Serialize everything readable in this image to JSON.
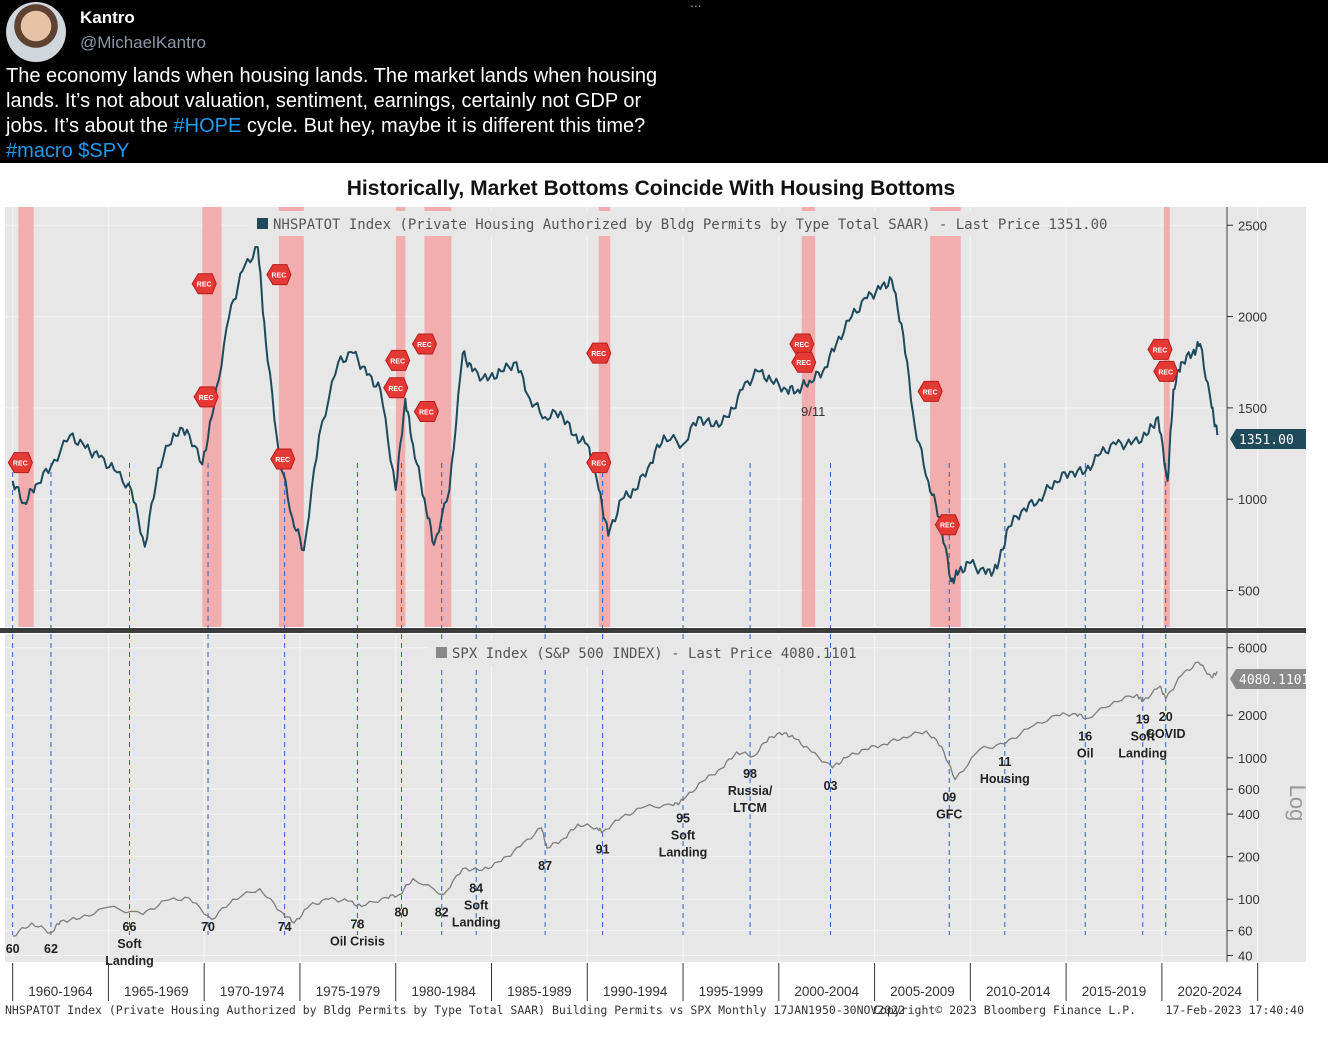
{
  "tweet": {
    "author_name": "Kantro",
    "author_handle": "@MichaelKantro",
    "more": "...",
    "line1": "The economy lands when housing lands. The market lands when housing",
    "line2": "lands. It’s not about valuation, sentiment, earnings, certainly not GDP or",
    "line3_a": "jobs. It’s about the ",
    "hashtag_hope": "#HOPE",
    "line3_b": " cycle. But hey, maybe it is different this time?",
    "hashtag_macro": "#macro",
    "cashtag_spy": "$SPY"
  },
  "chart_data": {
    "type": "line",
    "title": "Historically, Market Bottoms Coincide With Housing Bottoms",
    "colors": {
      "permits": "#1e4a5c",
      "spx": "#7d7d7d",
      "recession": "#f3a3a3",
      "rec_marker": "#e53935",
      "plot_bg": "#e7e7e7",
      "guide": "#2a63c9"
    },
    "permits_legend": "NHSPATOT Index (Private Housing Authorized by Bldg Permits by Type Total SAAR) - Last Price 1351.00",
    "permits_last_label": "1351.00",
    "permits_yticks": [
      "2500",
      "2000",
      "1500",
      "1000",
      "500"
    ],
    "permits_yticks_values": [
      2500,
      2000,
      1500,
      1000,
      500
    ],
    "spx_legend": "SPX Index (S&P 500 INDEX) - Last Price 4080.1101",
    "spx_last_label": "4080.1101",
    "spx_yticks": [
      "6000",
      "2000",
      "1000",
      "600",
      "400",
      "200",
      "100",
      "60",
      "40"
    ],
    "spx_yticks_values": [
      6000,
      2000,
      1000,
      600,
      400,
      200,
      100,
      60,
      40
    ],
    "spx_scale": "log",
    "spx_scale_label": "Log",
    "x_period_labels": [
      "1960-1964",
      "1965-1969",
      "1970-1974",
      "1975-1979",
      "1980-1984",
      "1985-1989",
      "1990-1994",
      "1995-1999",
      "2000-2004",
      "2005-2009",
      "2010-2014",
      "2015-2019",
      "2020-2024"
    ],
    "recessions": [
      [
        1960.3,
        1961.1
      ],
      [
        1969.9,
        1970.9
      ],
      [
        1973.9,
        1975.2
      ],
      [
        1980.0,
        1980.5
      ],
      [
        1981.5,
        1982.9
      ],
      [
        1990.6,
        1991.2
      ],
      [
        2001.2,
        2001.9
      ],
      [
        2007.9,
        2009.5
      ],
      [
        2020.1,
        2020.3
      ]
    ],
    "rec_marker_text": "REC",
    "rec_markers": [
      [
        1960.4,
        1200
      ],
      [
        1970.0,
        2180
      ],
      [
        1970.1,
        1560
      ],
      [
        1973.9,
        2230
      ],
      [
        1974.1,
        1220
      ],
      [
        1980.0,
        1610
      ],
      [
        1980.1,
        1760
      ],
      [
        1981.5,
        1850
      ],
      [
        1981.6,
        1480
      ],
      [
        1990.6,
        1200
      ],
      [
        1990.6,
        1800
      ],
      [
        2001.2,
        1850
      ],
      [
        2001.3,
        1750
      ],
      [
        2007.9,
        1590
      ],
      [
        2008.8,
        860
      ],
      [
        2019.9,
        1820
      ],
      [
        2020.2,
        1700
      ]
    ],
    "permits_series": {
      "name": "NHSPATOT Index",
      "x": [
        1960.0,
        1960.6,
        1961.2,
        1962.0,
        1963.0,
        1963.8,
        1964.5,
        1965.3,
        1966.2,
        1966.9,
        1967.6,
        1968.4,
        1969.1,
        1969.9,
        1970.5,
        1971.3,
        1972.0,
        1972.8,
        1973.2,
        1973.9,
        1974.6,
        1975.2,
        1976.0,
        1977.0,
        1977.8,
        1978.5,
        1979.2,
        1980.0,
        1980.5,
        1980.9,
        1981.5,
        1982.0,
        1982.8,
        1983.5,
        1984.0,
        1984.8,
        1985.5,
        1986.3,
        1987.0,
        1987.8,
        1988.6,
        1989.3,
        1990.0,
        1990.6,
        1991.1,
        1991.8,
        1992.5,
        1993.3,
        1994.0,
        1995.0,
        1995.8,
        1996.6,
        1997.4,
        1998.1,
        1998.9,
        1999.6,
        2000.4,
        2001.0,
        2001.6,
        2002.3,
        2003.0,
        2003.8,
        2004.6,
        2005.3,
        2005.9,
        2006.5,
        2007.1,
        2007.8,
        2008.4,
        2009.0,
        2009.4,
        2010.0,
        2010.8,
        2011.4,
        2012.0,
        2012.8,
        2013.6,
        2014.4,
        2015.2,
        2016.0,
        2016.8,
        2017.6,
        2018.4,
        2019.2,
        2019.8,
        2020.3,
        2020.6,
        2021.0,
        2021.6,
        2022.0,
        2022.6,
        2022.9
      ],
      "values": [
        1100,
        980,
        1080,
        1180,
        1350,
        1280,
        1230,
        1160,
        1050,
        740,
        1170,
        1360,
        1380,
        1190,
        1500,
        2000,
        2250,
        2380,
        1880,
        1250,
        900,
        720,
        1350,
        1750,
        1800,
        1680,
        1600,
        1050,
        1550,
        1300,
        1000,
        750,
        1050,
        1800,
        1700,
        1650,
        1700,
        1750,
        1550,
        1450,
        1480,
        1350,
        1300,
        1050,
        800,
        1000,
        1050,
        1200,
        1350,
        1300,
        1450,
        1400,
        1450,
        1600,
        1700,
        1650,
        1600,
        1600,
        1650,
        1700,
        1850,
        2000,
        2100,
        2150,
        2200,
        1900,
        1400,
        1100,
        900,
        550,
        600,
        650,
        590,
        620,
        850,
        950,
        1000,
        1100,
        1150,
        1150,
        1250,
        1300,
        1300,
        1350,
        1450,
        1100,
        1600,
        1750,
        1800,
        1850,
        1500,
        1351
      ]
    },
    "spx_series": {
      "name": "SPX Index",
      "x": [
        1960.0,
        1961.0,
        1962.0,
        1962.5,
        1963.5,
        1965.0,
        1966.8,
        1968.0,
        1969.2,
        1970.4,
        1971.5,
        1972.9,
        1974.0,
        1974.7,
        1975.5,
        1976.5,
        1977.5,
        1978.2,
        1979.5,
        1980.2,
        1980.9,
        1982.5,
        1983.5,
        1984.5,
        1985.5,
        1986.5,
        1987.6,
        1987.9,
        1988.8,
        1989.5,
        1990.5,
        1990.8,
        1991.8,
        1993.0,
        1994.5,
        1995.0,
        1996.0,
        1997.0,
        1997.8,
        1998.7,
        1999.5,
        2000.3,
        2000.9,
        2001.7,
        2002.8,
        2003.5,
        2004.5,
        2005.5,
        2006.5,
        2007.7,
        2008.5,
        2009.2,
        2010.5,
        2011.8,
        2013.0,
        2014.5,
        2015.5,
        2016.1,
        2017.5,
        2018.7,
        2019.0,
        2019.9,
        2020.2,
        2021.0,
        2021.9,
        2022.6,
        2022.9
      ],
      "values": [
        55,
        68,
        58,
        70,
        73,
        88,
        78,
        98,
        102,
        72,
        100,
        119,
        82,
        68,
        90,
        100,
        97,
        89,
        103,
        108,
        140,
        108,
        165,
        160,
        185,
        235,
        320,
        230,
        270,
        340,
        320,
        300,
        380,
        450,
        460,
        500,
        680,
        840,
        1100,
        1030,
        1400,
        1500,
        1350,
        1100,
        850,
        1000,
        1150,
        1250,
        1400,
        1550,
        1200,
        700,
        1150,
        1250,
        1600,
        2000,
        2050,
        1900,
        2500,
        2800,
        2500,
        3200,
        2600,
        3800,
        4750,
        3700,
        4080
      ]
    },
    "bottom_annotations": [
      {
        "x": 1960.0,
        "lines": [
          "60"
        ]
      },
      {
        "x": 1962.0,
        "lines": [
          "62"
        ]
      },
      {
        "x": 1966.1,
        "lines": [
          "66",
          "Soft",
          "Landing"
        ]
      },
      {
        "x": 1970.2,
        "lines": [
          "70"
        ]
      },
      {
        "x": 1974.2,
        "lines": [
          "74"
        ]
      },
      {
        "x": 1978.0,
        "lines": [
          "78",
          "Oil Crisis"
        ]
      },
      {
        "x": 1980.3,
        "lines": [
          "80"
        ]
      },
      {
        "x": 1982.4,
        "lines": [
          "82"
        ]
      },
      {
        "x": 1984.2,
        "lines": [
          "84",
          "Soft",
          "Landing"
        ]
      },
      {
        "x": 1987.8,
        "lines": [
          "87"
        ]
      },
      {
        "x": 1990.8,
        "lines": [
          "91"
        ]
      },
      {
        "x": 1995.0,
        "lines": [
          "95",
          "Soft",
          "Landing"
        ]
      },
      {
        "x": 1998.5,
        "lines": [
          "98",
          "Russia/",
          "LTCM"
        ]
      },
      {
        "x": 2002.7,
        "lines": [
          "03"
        ]
      },
      {
        "x": 2008.9,
        "lines": [
          "09",
          "GFC"
        ]
      },
      {
        "x": 2011.8,
        "lines": [
          "11",
          "Housing"
        ]
      },
      {
        "x": 2016.0,
        "lines": [
          "16",
          "Oil"
        ]
      },
      {
        "x": 2019.0,
        "lines": [
          "19",
          "Soft",
          "Landing"
        ]
      },
      {
        "x": 2020.2,
        "lines": [
          "20",
          "COVID"
        ]
      }
    ],
    "permits_note": "9/11",
    "footer_left": "NHSPATOT Index (Private Housing Authorized by Bldg Permits by Type Total SAAR) Building Permits vs SPX Monthly 17JAN1950-30NOV2022",
    "footer_mid": "Copyright© 2023 Bloomberg Finance L.P.",
    "footer_right": "17-Feb-2023 17:40:40",
    "x_range": [
      1959.6,
      2023.4
    ],
    "permits_ylim": [
      300,
      2600
    ],
    "spx_ylim": [
      36,
      7500
    ],
    "grid": true
  }
}
